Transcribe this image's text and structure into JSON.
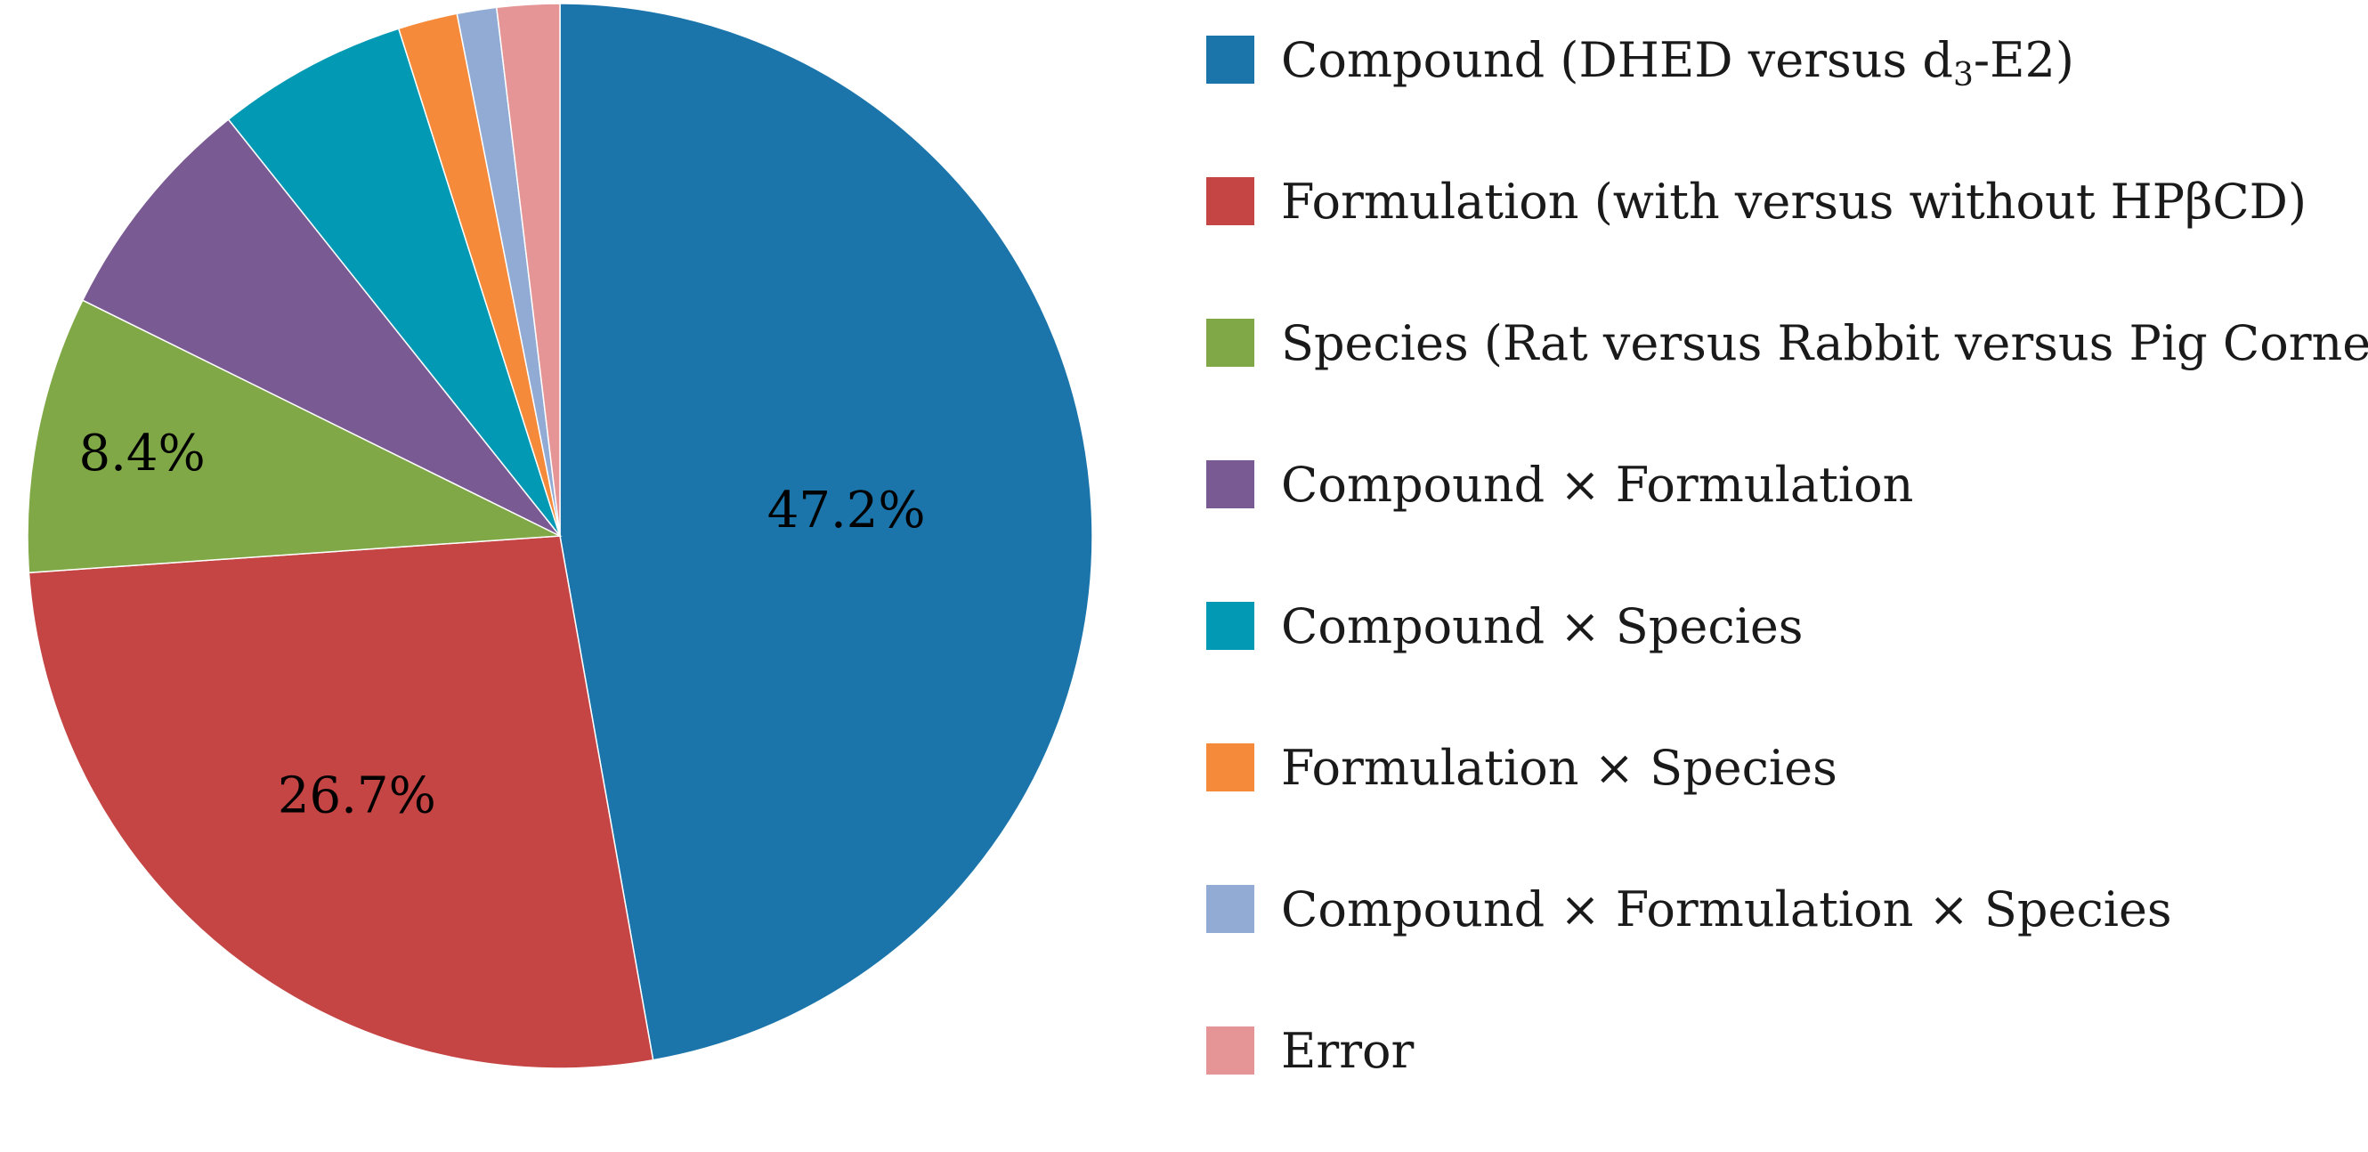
{
  "chart_data": {
    "type": "pie",
    "title": "",
    "legend_position": "right",
    "slices": [
      {
        "name": "Compound (DHED versus d3-E2)",
        "value": 47.2,
        "color": "#1B75AA",
        "label": "47.2%"
      },
      {
        "name": "Formulation (with versus without HPβCD)",
        "value": 26.7,
        "color": "#C54444",
        "label": "26.7%"
      },
      {
        "name": "Species (Rat versus Rabbit versus Pig Cornea)",
        "value": 8.4,
        "color": "#80A846",
        "label": "8.4%"
      },
      {
        "name": "Compound × Formulation",
        "value": 7.0,
        "color": "#7A5A93",
        "label": ""
      },
      {
        "name": "Compound × Species",
        "value": 5.8,
        "color": "#0299B4",
        "label": ""
      },
      {
        "name": "Formulation × Species",
        "value": 1.8,
        "color": "#F58A3A",
        "label": ""
      },
      {
        "name": "Compound × Formulation × Species",
        "value": 1.2,
        "color": "#91ABD4",
        "label": ""
      },
      {
        "name": "Error",
        "value": 1.9,
        "color": "#E59596",
        "label": ""
      }
    ]
  }
}
